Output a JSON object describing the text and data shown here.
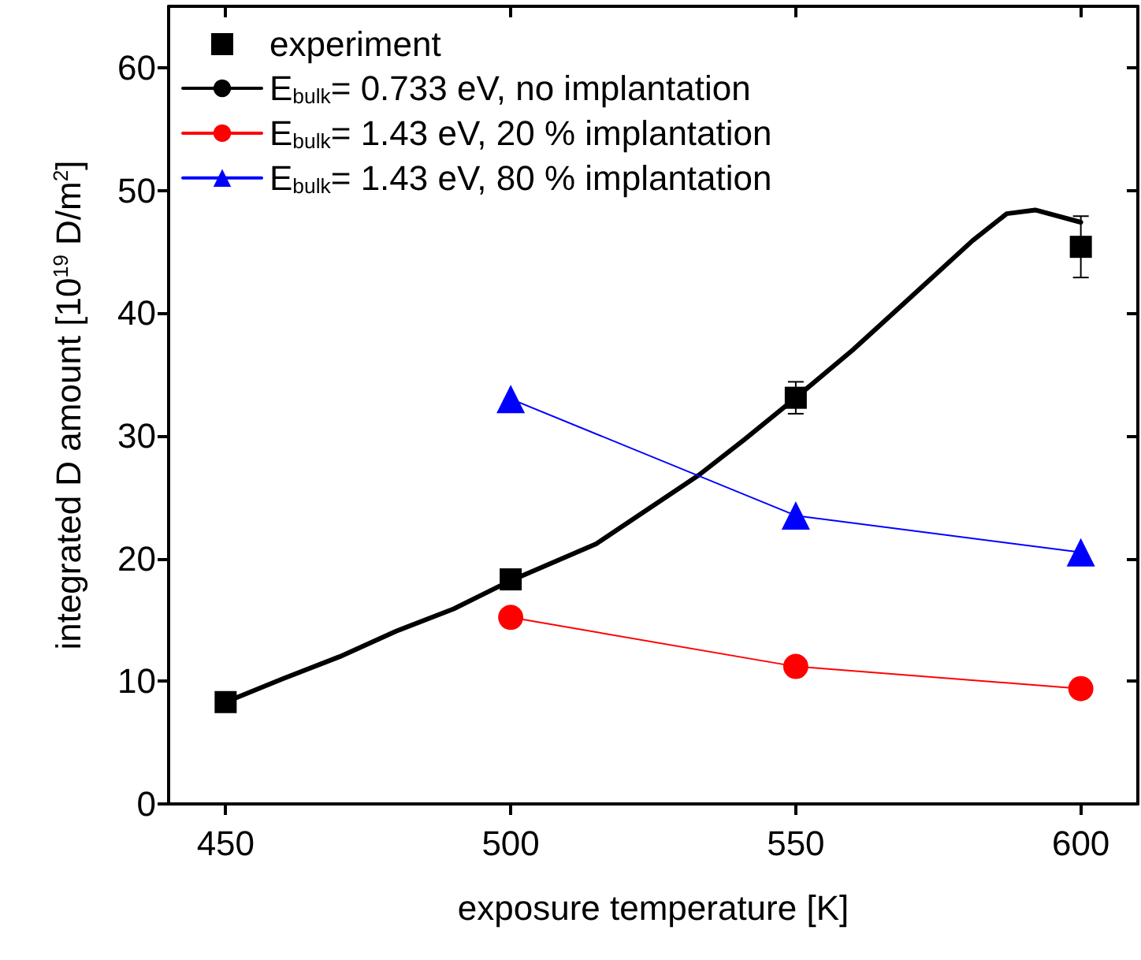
{
  "chart_data": {
    "type": "line",
    "xlabel": "exposure temperature [K]",
    "ylabel": "integrated D amount [10$^{19}$ D/m$^{2}$]",
    "xlim": [
      440,
      610
    ],
    "xticks": [
      450,
      500,
      550,
      600
    ],
    "ylim": [
      0,
      65
    ],
    "yticks": [
      0,
      10,
      20,
      30,
      40,
      50,
      60
    ],
    "grid": false,
    "legend": "top left",
    "series": [
      {
        "name": "experiment",
        "type": "scatter",
        "marker": "square",
        "color": "#000000",
        "x": [
          450,
          500,
          550,
          600
        ],
        "values": [
          8.3,
          18.3,
          33.1,
          45.4
        ],
        "errors": [
          null,
          null,
          1.3,
          2.5
        ]
      },
      {
        "name": "E$_{bulk}$= 0.733 eV, no implantation",
        "marker": "none",
        "line_style": "solid",
        "color": "#000000",
        "x": [
          450,
          460,
          470,
          480,
          490,
          500,
          515,
          533,
          541,
          550,
          560,
          569,
          581,
          587,
          592,
          600
        ],
        "values": [
          8.3,
          10.2,
          12.0,
          14.1,
          15.9,
          18.2,
          21.2,
          26.8,
          29.7,
          33.1,
          37.0,
          40.8,
          45.9,
          48.1,
          48.4,
          47.4
        ]
      },
      {
        "name": "E$_{bulk}$= 1.43 eV, 20 % implantation",
        "marker": "circle",
        "line_style": "solid",
        "color": "#ff0000",
        "x": [
          500,
          550,
          600
        ],
        "values": [
          15.2,
          11.2,
          9.4
        ]
      },
      {
        "name": "E$_{bulk}$= 1.43 eV, 80 % implantation",
        "marker": "triangle",
        "line_style": "solid",
        "color": "#0000ff",
        "x": [
          500,
          550,
          600
        ],
        "values": [
          33.0,
          23.5,
          20.5
        ]
      }
    ]
  }
}
